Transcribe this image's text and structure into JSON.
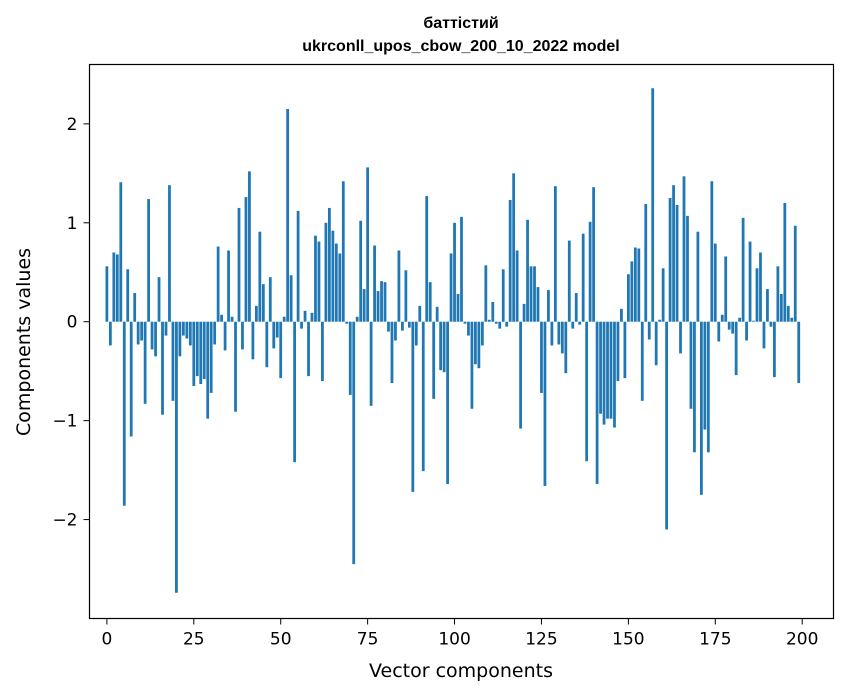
{
  "chart_data": {
    "type": "bar",
    "title_line1": "баттістий",
    "title_line2": "ukrconll_upos_cbow_200_10_2022 model",
    "xlabel": "Vector components",
    "ylabel": "Components values",
    "xlim": [
      -5,
      209
    ],
    "ylim": [
      -3.0,
      2.6
    ],
    "xticks": [
      0,
      25,
      50,
      75,
      100,
      125,
      150,
      175,
      200
    ],
    "yticks": [
      -2,
      -1,
      0,
      1,
      2
    ],
    "ytick_labels": [
      "−2",
      "−1",
      "0",
      "1",
      "2"
    ],
    "values": [
      0.56,
      -0.24,
      0.7,
      0.68,
      1.41,
      -1.86,
      0.53,
      -1.16,
      0.29,
      -0.23,
      -0.19,
      -0.83,
      1.24,
      -0.28,
      -0.35,
      0.45,
      -0.94,
      -0.14,
      1.38,
      -0.8,
      -2.74,
      -0.35,
      -0.14,
      -0.17,
      -0.24,
      -0.65,
      -0.55,
      -0.63,
      -0.58,
      -0.98,
      -0.72,
      -0.23,
      0.76,
      0.07,
      -0.29,
      0.72,
      0.05,
      -0.91,
      1.15,
      -0.28,
      1.26,
      1.52,
      -0.38,
      0.16,
      0.91,
      0.38,
      -0.46,
      0.45,
      -0.27,
      -0.16,
      -0.57,
      0.05,
      2.15,
      0.47,
      -1.42,
      1.12,
      -0.07,
      0.11,
      -0.55,
      0.09,
      0.87,
      0.81,
      -0.6,
      1.0,
      1.15,
      0.92,
      0.79,
      0.69,
      1.42,
      -0.02,
      -0.74,
      -2.45,
      0.05,
      1.02,
      0.33,
      1.56,
      -0.85,
      0.77,
      0.31,
      0.41,
      0.4,
      -0.1,
      -0.62,
      -0.19,
      0.72,
      -0.09,
      0.52,
      -0.06,
      -1.72,
      -0.24,
      0.16,
      -1.51,
      1.27,
      0.4,
      -0.78,
      0.15,
      -0.49,
      -0.51,
      -1.64,
      0.69,
      1.0,
      0.28,
      1.06,
      -0.02,
      -0.14,
      -0.88,
      -0.43,
      -0.47,
      -0.24,
      0.57,
      0.02,
      0.2,
      -0.02,
      -0.07,
      0.53,
      -0.05,
      1.23,
      1.5,
      0.72,
      -1.08,
      0.18,
      1.03,
      0.56,
      0.56,
      0.35,
      -0.72,
      -1.66,
      0.32,
      -0.24,
      1.37,
      -0.23,
      -0.32,
      -0.52,
      0.82,
      -0.07,
      0.29,
      -0.03,
      0.89,
      -1.41,
      1.01,
      1.36,
      -1.64,
      -0.93,
      -1.04,
      -0.98,
      -0.98,
      -1.07,
      -0.6,
      0.13,
      -0.57,
      0.48,
      0.61,
      0.75,
      0.74,
      -0.8,
      1.19,
      -0.18,
      2.36,
      -0.44,
      0.02,
      0.54,
      -2.1,
      1.25,
      1.38,
      1.18,
      -0.32,
      1.47,
      1.07,
      -0.88,
      -1.32,
      0.91,
      -1.75,
      -1.09,
      -1.32,
      1.42,
      0.79,
      -0.2,
      0.07,
      0.66,
      -0.08,
      -0.12,
      -0.54,
      0.04,
      1.05,
      -0.19,
      0.81,
      0.01,
      0.54,
      0.7,
      -0.27,
      0.33,
      -0.05,
      -0.56,
      0.56,
      0.28,
      1.2,
      0.16,
      0.04,
      0.97,
      -0.62
    ]
  }
}
